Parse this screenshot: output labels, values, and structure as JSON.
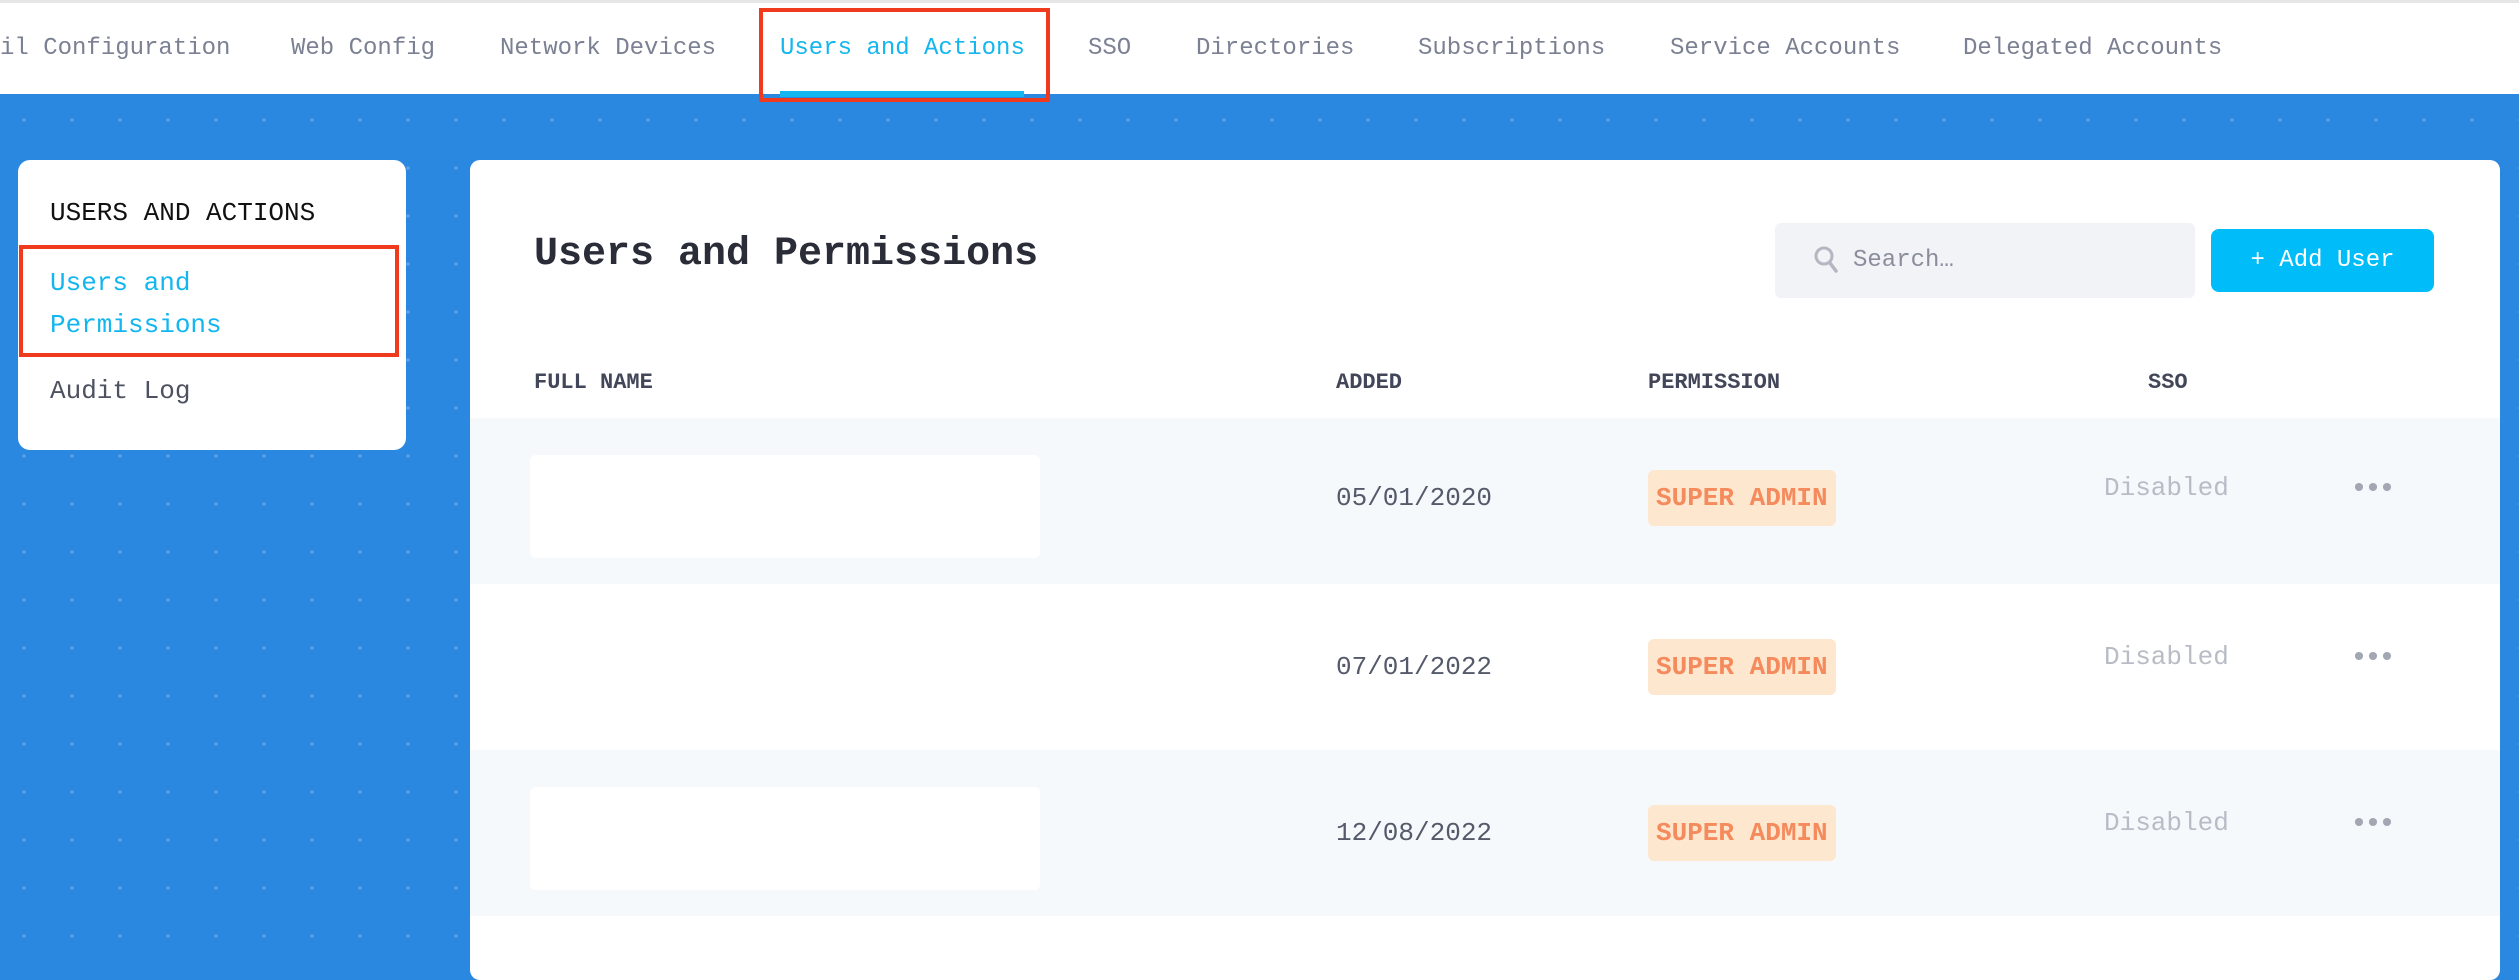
{
  "nav": {
    "tabs": [
      {
        "label": "il Configuration"
      },
      {
        "label": "Web Config"
      },
      {
        "label": "Network Devices"
      },
      {
        "label": "Users and Actions",
        "active": true
      },
      {
        "label": "SSO"
      },
      {
        "label": "Directories"
      },
      {
        "label": "Subscriptions"
      },
      {
        "label": "Service Accounts"
      },
      {
        "label": "Delegated Accounts"
      }
    ]
  },
  "sidebar": {
    "title": "USERS AND ACTIONS",
    "items": [
      {
        "label_line1": "Users and",
        "label_line2": "Permissions",
        "active": true
      },
      {
        "label": "Audit Log"
      }
    ]
  },
  "main": {
    "title": "Users and Permissions",
    "search_placeholder": "Search…",
    "add_user_label": "+ Add User",
    "columns": [
      "FULL NAME",
      "ADDED",
      "PERMISSION",
      "SSO"
    ],
    "rows": [
      {
        "added": "05/01/2020",
        "permission": "SUPER ADMIN",
        "sso": "Disabled",
        "more": "•••"
      },
      {
        "added": "07/01/2022",
        "permission": "SUPER ADMIN",
        "sso": "Disabled",
        "more": "•••"
      },
      {
        "added": "12/08/2022",
        "permission": "SUPER ADMIN",
        "sso": "Disabled",
        "more": "•••"
      }
    ]
  },
  "colors": {
    "accent": "#13b6ee",
    "background": "#2a88e0",
    "badge_text": "#f58a5c",
    "badge_bg": "#fde7cf",
    "highlight": "#f03a1e"
  }
}
